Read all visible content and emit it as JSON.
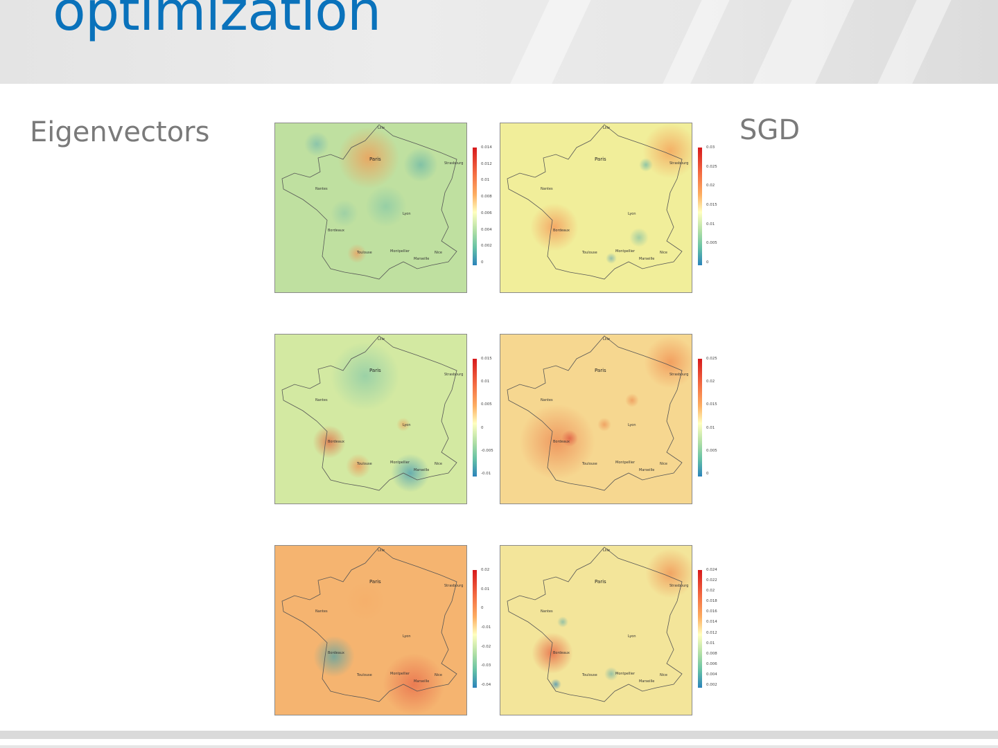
{
  "slide": {
    "title": "optimization",
    "left_label": "Eigenvectors",
    "right_label": "SGD"
  },
  "colors": {
    "title": "#0a72bb",
    "label": "#7a7a7a",
    "colormap": [
      "#d7191c",
      "#f46d43",
      "#fdae61",
      "#ffffbf",
      "#abdda4",
      "#66c2a5",
      "#2b83ba"
    ]
  },
  "panels": [
    {
      "name": "eigenvector-1",
      "base": "#bfe0a0",
      "colorbar_ticks": [
        "0.014",
        "0.012",
        "0.01",
        "0.008",
        "0.006",
        "0.004",
        "0.002",
        "0"
      ]
    },
    {
      "name": "sgd-1",
      "base": "#f1ee9a",
      "colorbar_ticks": [
        "0.03",
        "0.025",
        "0.02",
        "0.015",
        "0.01",
        "0.005",
        "0"
      ]
    },
    {
      "name": "eigenvector-2",
      "base": "#d3e9a2",
      "colorbar_ticks": [
        "0.015",
        "0.01",
        "0.005",
        "0",
        "-0.005",
        "-0.01"
      ]
    },
    {
      "name": "sgd-2",
      "base": "#f6d790",
      "colorbar_ticks": [
        "0.025",
        "0.02",
        "0.015",
        "0.01",
        "0.005",
        "0"
      ]
    },
    {
      "name": "eigenvector-3",
      "base": "#f5b470",
      "colorbar_ticks": [
        "0.02",
        "0.01",
        "0",
        "-0.01",
        "-0.02",
        "-0.03",
        "-0.04"
      ]
    },
    {
      "name": "sgd-3",
      "base": "#f3e59a",
      "colorbar_ticks": [
        "0.024",
        "0.022",
        "0.02",
        "0.018",
        "0.016",
        "0.014",
        "0.012",
        "0.01",
        "0.008",
        "0.006",
        "0.004",
        "0.002"
      ]
    }
  ],
  "cities": [
    "Lille",
    "Paris",
    "Strasbourg",
    "Nantes",
    "Lyon",
    "Bordeaux",
    "Toulouse",
    "Montpellier",
    "Marseille",
    "Nice"
  ]
}
